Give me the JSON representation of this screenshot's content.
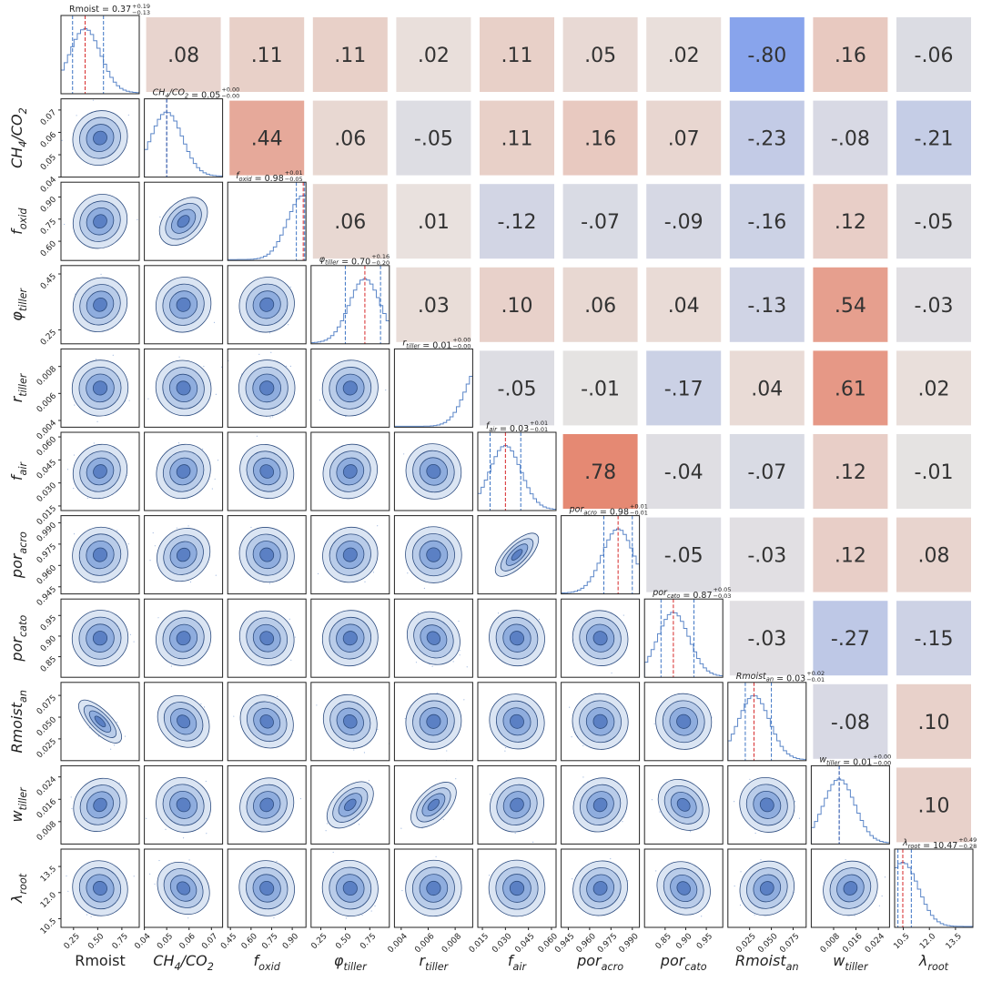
{
  "chart_data": {
    "type": "corner",
    "title_separator": " = ",
    "params": [
      {
        "label": [
          "Rmoist"
        ],
        "italic": false,
        "xlim": [
          0.12,
          0.93
        ],
        "xticks": [
          {
            "value": 0.25,
            "label": "0.25"
          },
          {
            "value": 0.5,
            "label": "0.50"
          },
          {
            "value": 0.75,
            "label": "0.75"
          }
        ],
        "median": {
          "value": 0.37,
          "label": "0.37"
        },
        "plus": {
          "value": 0.19,
          "label": "+0.19"
        },
        "minus": {
          "value": -0.13,
          "label": "−0.13"
        }
      },
      {
        "label": [
          "CH",
          "4",
          "/CO",
          "2"
        ],
        "italic": true,
        "xlim": [
          0.04,
          0.075
        ],
        "xticks": [
          0.04,
          0.05,
          0.06,
          0.07
        ],
        "median": {
          "value": 0.05,
          "label": "0.05"
        },
        "plus": {
          "value": 0,
          "label": "+0.00"
        },
        "minus": {
          "value": 0,
          "label": "−0.00"
        }
      },
      {
        "label": [
          "f",
          "oxid"
        ],
        "italic": true,
        "xlim": [
          0.43,
          1.0
        ],
        "xticks": [
          0.45,
          {
            "value": 0.6,
            "label": "0.60"
          },
          0.75,
          {
            "value": 0.9,
            "label": "0.90"
          }
        ],
        "ylim": [
          0.47,
          1.0
        ],
        "yticks": [
          {
            "value": 0.6,
            "label": "0.60"
          },
          0.75,
          {
            "value": 0.9,
            "label": "0.90"
          }
        ],
        "median": {
          "value": 0.98,
          "label": "0.98"
        },
        "plus": {
          "value": 0.01,
          "label": "+0.01"
        },
        "minus": {
          "value": -0.05,
          "label": "−0.05"
        }
      },
      {
        "label": [
          "φ",
          "tiller"
        ],
        "italic": true,
        "xlim": [
          0.15,
          0.95
        ],
        "xticks": [
          0.25,
          {
            "value": 0.5,
            "label": "0.50"
          },
          0.75
        ],
        "ylim": [
          0.2,
          0.48
        ],
        "yticks": [
          0.25,
          0.45
        ],
        "median": {
          "value": 0.7,
          "label": "0.70"
        },
        "plus": {
          "value": 0.16,
          "label": "+0.16"
        },
        "minus": {
          "value": -0.2,
          "label": "−0.20"
        }
      },
      {
        "label": [
          "r",
          "tiller"
        ],
        "italic": true,
        "xlim": [
          0.0035,
          0.0093
        ],
        "xticks": [
          0.004,
          0.006,
          0.008
        ],
        "median": {
          "value": 0.01,
          "label": "0.01"
        },
        "plus": {
          "value": 0,
          "label": "+0.00"
        },
        "minus": {
          "value": 0,
          "label": "−0.00"
        }
      },
      {
        "label": [
          "f",
          "air"
        ],
        "italic": true,
        "xlim": [
          0.012,
          0.063
        ],
        "xticks": [
          0.015,
          {
            "value": 0.03,
            "label": "0.030"
          },
          0.045,
          {
            "value": 0.06,
            "label": "0.060"
          }
        ],
        "median": {
          "value": 0.03,
          "label": "0.03"
        },
        "plus": {
          "value": 0.01,
          "label": "+0.01"
        },
        "minus": {
          "value": -0.01,
          "label": "−0.01"
        }
      },
      {
        "label": [
          "por",
          "acro"
        ],
        "italic": true,
        "xlim": [
          0.94,
          0.995
        ],
        "xticks": [
          0.945,
          {
            "value": 0.96,
            "label": "0.960"
          },
          0.975,
          {
            "value": 0.99,
            "label": "0.990"
          }
        ],
        "median": {
          "value": 0.98,
          "label": "0.98"
        },
        "plus": {
          "value": 0.01,
          "label": "+0.01"
        },
        "minus": {
          "value": -0.01,
          "label": "−0.01"
        }
      },
      {
        "label": [
          "por",
          "cato"
        ],
        "italic": true,
        "xlim": [
          0.8,
          0.99
        ],
        "xticks": [
          0.85,
          {
            "value": 0.9,
            "label": "0.90"
          },
          0.95
        ],
        "median": {
          "value": 0.87,
          "label": "0.87"
        },
        "plus": {
          "value": 0.05,
          "label": "+0.05"
        },
        "minus": {
          "value": -0.03,
          "label": "−0.03"
        }
      },
      {
        "label": [
          "Rmoist",
          "an"
        ],
        "italic": true,
        "xlim": [
          0.0,
          0.09
        ],
        "xticks": [
          0.025,
          {
            "value": 0.05,
            "label": "0.050"
          },
          0.075
        ],
        "median": {
          "value": 0.03,
          "label": "0.03"
        },
        "plus": {
          "value": 0.02,
          "label": "+0.02"
        },
        "minus": {
          "value": -0.01,
          "label": "−0.01"
        }
      },
      {
        "label": [
          "w",
          "tiller"
        ],
        "italic": true,
        "xlim": [
          0.0,
          0.028
        ],
        "xticks": [
          0.008,
          0.016,
          0.024
        ],
        "median": {
          "value": 0.01,
          "label": "0.01"
        },
        "plus": {
          "value": 0,
          "label": "+0.00"
        },
        "minus": {
          "value": 0,
          "label": "−0.00"
        }
      },
      {
        "label": [
          "λ",
          "root"
        ],
        "italic": true,
        "xlim": [
          10.0,
          14.5
        ],
        "xticks": [
          10.5,
          {
            "value": 12,
            "label": "12.0"
          },
          13.5
        ],
        "median": {
          "value": 10.47,
          "label": "10.47"
        },
        "plus": {
          "value": 0.49,
          "label": "+0.49"
        },
        "minus": {
          "value": -0.28,
          "label": "−0.28"
        }
      }
    ],
    "correlations": {
      "values": [
        [
          0.08,
          0.11,
          0.11,
          0.02,
          0.11,
          0.05,
          0.02,
          -0.8,
          0.16,
          -0.06
        ],
        [
          0.44,
          0.06,
          -0.05,
          0.11,
          0.16,
          0.07,
          -0.23,
          -0.08,
          -0.21
        ],
        [
          0.06,
          0.01,
          -0.12,
          -0.07,
          -0.09,
          -0.16,
          0.12,
          -0.05
        ],
        [
          0.03,
          0.1,
          0.06,
          0.04,
          -0.13,
          0.54,
          -0.03
        ],
        [
          -0.05,
          -0.01,
          -0.17,
          0.04,
          0.61,
          0.02
        ],
        [
          0.78,
          -0.04,
          -0.07,
          0.12,
          -0.01
        ],
        [
          -0.05,
          -0.03,
          0.12,
          0.08
        ],
        [
          -0.03,
          -0.27,
          -0.15
        ],
        [
          -0.08,
          0.1
        ],
        [
          0.1
        ]
      ],
      "value_labels": [
        [
          ".08",
          ".11",
          ".11",
          ".02",
          ".11",
          ".05",
          ".02",
          "-.80",
          ".16",
          "-.06"
        ],
        [
          ".44",
          ".06",
          "-.05",
          ".11",
          ".16",
          ".07",
          "-.23",
          "-.08",
          "-.21"
        ],
        [
          ".06",
          ".01",
          "-.12",
          "-.07",
          "-.09",
          "-.16",
          ".12",
          "-.05"
        ],
        [
          ".03",
          ".10",
          ".06",
          ".04",
          "-.13",
          ".54",
          "-.03"
        ],
        [
          "-.05",
          "-.01",
          "-.17",
          ".04",
          ".61",
          ".02"
        ],
        [
          ".78",
          "-.04",
          "-.07",
          ".12",
          "-.01"
        ],
        [
          "-.05",
          "-.03",
          ".12",
          ".08"
        ],
        [
          "-.03",
          "-.27",
          "-.15"
        ],
        [
          "-.08",
          ".10"
        ],
        [
          ".10"
        ]
      ]
    }
  }
}
